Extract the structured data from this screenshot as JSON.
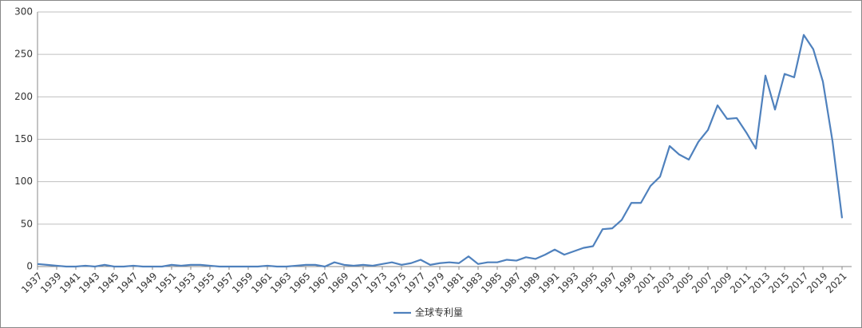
{
  "chart_data": {
    "type": "line",
    "x": [
      1937,
      1938,
      1939,
      1940,
      1941,
      1942,
      1943,
      1944,
      1945,
      1946,
      1947,
      1948,
      1949,
      1950,
      1951,
      1952,
      1953,
      1954,
      1955,
      1956,
      1957,
      1958,
      1959,
      1960,
      1961,
      1962,
      1963,
      1964,
      1965,
      1966,
      1967,
      1968,
      1969,
      1970,
      1971,
      1972,
      1973,
      1974,
      1975,
      1976,
      1977,
      1978,
      1979,
      1980,
      1981,
      1982,
      1983,
      1984,
      1985,
      1986,
      1987,
      1988,
      1989,
      1990,
      1991,
      1992,
      1993,
      1994,
      1995,
      1996,
      1997,
      1998,
      1999,
      2000,
      2001,
      2002,
      2003,
      2004,
      2005,
      2006,
      2007,
      2008,
      2009,
      2010,
      2011,
      2012,
      2013,
      2014,
      2015,
      2016,
      2017,
      2018,
      2019,
      2020,
      2021
    ],
    "series": [
      {
        "name": "全球专利量",
        "color": "#4f81bd",
        "values": [
          3,
          2,
          1,
          0,
          0,
          1,
          0,
          2,
          0,
          0,
          1,
          0,
          0,
          0,
          2,
          1,
          2,
          2,
          1,
          0,
          0,
          0,
          0,
          0,
          1,
          0,
          0,
          1,
          2,
          2,
          0,
          5,
          2,
          1,
          2,
          1,
          3,
          5,
          2,
          4,
          8,
          2,
          4,
          5,
          4,
          12,
          3,
          5,
          5,
          8,
          7,
          11,
          9,
          14,
          20,
          14,
          18,
          22,
          24,
          44,
          45,
          55,
          75,
          75,
          95,
          106,
          142,
          132,
          126,
          147,
          161,
          190,
          174,
          175,
          158,
          139,
          225,
          185,
          227,
          223,
          273,
          256,
          218,
          148,
          57
        ]
      }
    ],
    "xlim": [
      1937,
      2021
    ],
    "xticks": [
      1937,
      1939,
      1941,
      1943,
      1945,
      1947,
      1949,
      1951,
      1953,
      1955,
      1957,
      1959,
      1961,
      1963,
      1965,
      1967,
      1969,
      1971,
      1973,
      1975,
      1977,
      1979,
      1981,
      1983,
      1985,
      1987,
      1989,
      1991,
      1993,
      1995,
      1997,
      1999,
      2001,
      2003,
      2005,
      2007,
      2009,
      2011,
      2013,
      2015,
      2017,
      2019,
      2021
    ],
    "ylim": [
      0,
      300
    ],
    "yticks": [
      0,
      50,
      100,
      150,
      200,
      250,
      300
    ],
    "grid": true,
    "legend": "bottom"
  }
}
